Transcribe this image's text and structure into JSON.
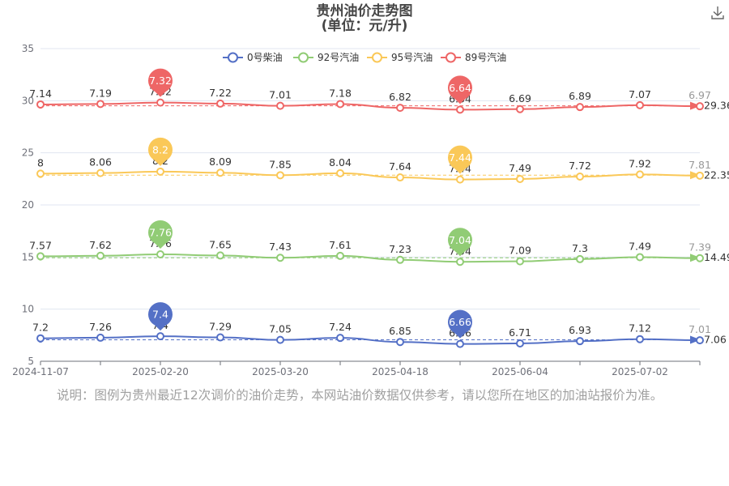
{
  "title_line1": "贵州油价走势图",
  "title_line2": "(单位：元/升)",
  "note": "说明：图例为贵州最近12次调价的油价走势，本网站油价数据仅供参考，请以您所在地区的加油站报价为准。",
  "toolbar": {
    "download_icon": "download-icon"
  },
  "chart_data": {
    "type": "line",
    "ylim": [
      5,
      35
    ],
    "yticks": [
      5,
      10,
      15,
      20,
      25,
      30,
      35
    ],
    "grid": true,
    "legend_position": "top",
    "x_tick_labels": [
      "2024-11-07",
      "2025-02-20",
      "2025-03-20",
      "2025-04-18",
      "2025-06-04",
      "2025-07-02"
    ],
    "x_tick_indices": [
      0,
      2,
      4,
      6,
      8,
      10
    ],
    "series": [
      {
        "name": "0号柴油",
        "color": "#5470c6",
        "offset": 0,
        "values": [
          7.2,
          7.26,
          7.4,
          7.29,
          7.05,
          7.24,
          6.85,
          6.66,
          6.71,
          6.93,
          7.12,
          7.01
        ],
        "max_label": "7.4",
        "min_label": "6.66",
        "average_label": "7.06"
      },
      {
        "name": "92号汽油",
        "color": "#91cc75",
        "offset": 7.5,
        "values": [
          7.57,
          7.62,
          7.76,
          7.65,
          7.43,
          7.61,
          7.23,
          7.04,
          7.09,
          7.3,
          7.49,
          7.39
        ],
        "max_label": "7.76",
        "min_label": "7.04",
        "average_label": "14.49"
      },
      {
        "name": "95号汽油",
        "color": "#fac858",
        "offset": 15,
        "values": [
          8,
          8.06,
          8.2,
          8.09,
          7.85,
          8.04,
          7.64,
          7.44,
          7.49,
          7.72,
          7.92,
          7.81
        ],
        "max_label": "8.2",
        "min_label": "7.44",
        "average_label": "22.35"
      },
      {
        "name": "89号汽油",
        "color": "#ee6666",
        "offset": 22.5,
        "values": [
          7.14,
          7.19,
          7.32,
          7.22,
          7.01,
          7.18,
          6.82,
          6.64,
          6.69,
          6.89,
          7.07,
          6.97
        ],
        "max_label": "7.32",
        "min_label": "6.64",
        "average_label": "29.36"
      }
    ]
  }
}
